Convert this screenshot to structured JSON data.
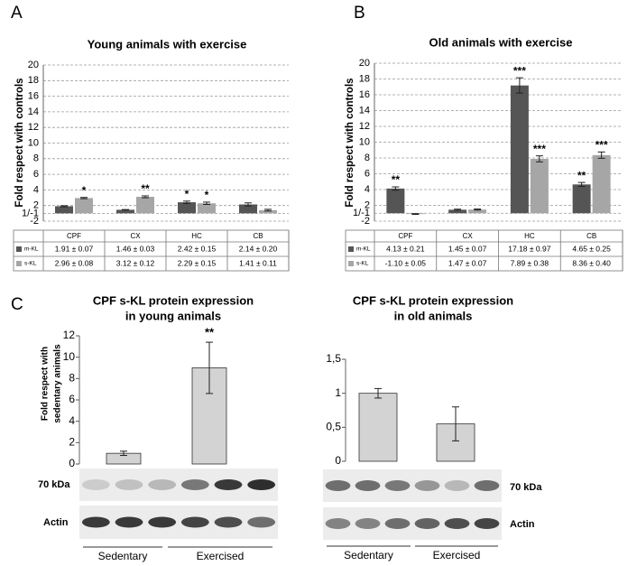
{
  "chart_data": [
    {
      "type": "bar",
      "panel_label": "A",
      "title": "Young animals with exercise",
      "y_label": "Fold respect with controls",
      "categories": [
        "CPF",
        "CX",
        "HC",
        "CB"
      ],
      "series": [
        {
          "name": "m-KL",
          "color": "#555555",
          "values": [
            1.91,
            1.46,
            2.42,
            2.14
          ],
          "errors": [
            0.07,
            0.03,
            0.15,
            0.2
          ],
          "value_labels": [
            "1.91 ± 0.07",
            "1.46 ± 0.03",
            "2.42 ± 0.15",
            "2.14 ± 0.20"
          ],
          "significance": [
            null,
            null,
            "*",
            null
          ]
        },
        {
          "name": "s-KL",
          "color": "#a6a6a6",
          "values": [
            2.96,
            3.12,
            2.29,
            1.41
          ],
          "errors": [
            0.08,
            0.12,
            0.15,
            0.11
          ],
          "value_labels": [
            "2.96 ± 0.08",
            "3.12 ± 0.12",
            "2.29 ± 0.15",
            "1.41 ± 0.11"
          ],
          "significance": [
            "*",
            "**",
            "*",
            null
          ]
        }
      ],
      "ylim": [
        -2,
        20
      ],
      "yticks": [
        -2,
        {
          "value": 1,
          "label": "1/-1"
        },
        2,
        4,
        6,
        8,
        10,
        12,
        14,
        16,
        18,
        20
      ],
      "yscale": "fold",
      "grid": true,
      "legend": "table"
    },
    {
      "type": "bar",
      "panel_label": "B",
      "title": "Old animals with exercise",
      "y_label": "Fold respect with controls",
      "categories": [
        "CPF",
        "CX",
        "HC",
        "CB"
      ],
      "series": [
        {
          "name": "m-KL",
          "color": "#555555",
          "values": [
            4.13,
            1.45,
            17.18,
            4.65
          ],
          "errors": [
            0.21,
            0.07,
            0.97,
            0.25
          ],
          "value_labels": [
            "4.13 ± 0.21",
            "1.45 ± 0.07",
            "17.18 ± 0.97",
            "4.65 ± 0.25"
          ],
          "significance": [
            "**",
            null,
            "***",
            "**"
          ]
        },
        {
          "name": "s-KL",
          "color": "#a6a6a6",
          "values": [
            -1.1,
            1.47,
            7.89,
            8.36
          ],
          "errors": [
            0.05,
            0.07,
            0.38,
            0.4
          ],
          "value_labels": [
            "-1.10 ± 0.05",
            "1.47 ± 0.07",
            "7.89 ± 0.38",
            "8.36 ± 0.40"
          ],
          "significance": [
            null,
            null,
            "***",
            "***"
          ]
        }
      ],
      "ylim": [
        -2,
        20
      ],
      "yticks": [
        -2,
        {
          "value": 1,
          "label": "1/-1"
        },
        2,
        4,
        6,
        8,
        10,
        12,
        14,
        16,
        18,
        20
      ],
      "yscale": "fold",
      "grid": true,
      "legend": "table"
    },
    {
      "type": "bar",
      "panel_label": "C",
      "title": [
        "CPF s-KL protein expression",
        "in young animals"
      ],
      "y_label": [
        "Fold respect with",
        "sedentary animals"
      ],
      "categories": [
        "Sedentary",
        "Exercised"
      ],
      "values": [
        1,
        9
      ],
      "errors": [
        0.2,
        2.4
      ],
      "significance": [
        null,
        "**"
      ],
      "color": "#d3d3d3",
      "ylim": [
        0,
        12
      ],
      "yticks": [
        0,
        2,
        4,
        6,
        8,
        10,
        12
      ],
      "grid": false,
      "blot_labels": [
        "70 kDa",
        "Actin"
      ]
    },
    {
      "type": "bar",
      "title": [
        "CPF s-KL protein expression",
        "in old animals"
      ],
      "categories": [
        "Sedentary",
        "Exercised"
      ],
      "values": [
        1,
        0.55
      ],
      "errors": [
        0.07,
        0.25
      ],
      "color": "#d3d3d3",
      "ylim": [
        0,
        1.5
      ],
      "yticks": [
        0,
        {
          "value": 0.5,
          "label": "0,5"
        },
        1,
        {
          "value": 1.5,
          "label": "1,5"
        }
      ],
      "grid": false,
      "blot_labels": [
        "70 kDa",
        "Actin"
      ]
    }
  ]
}
